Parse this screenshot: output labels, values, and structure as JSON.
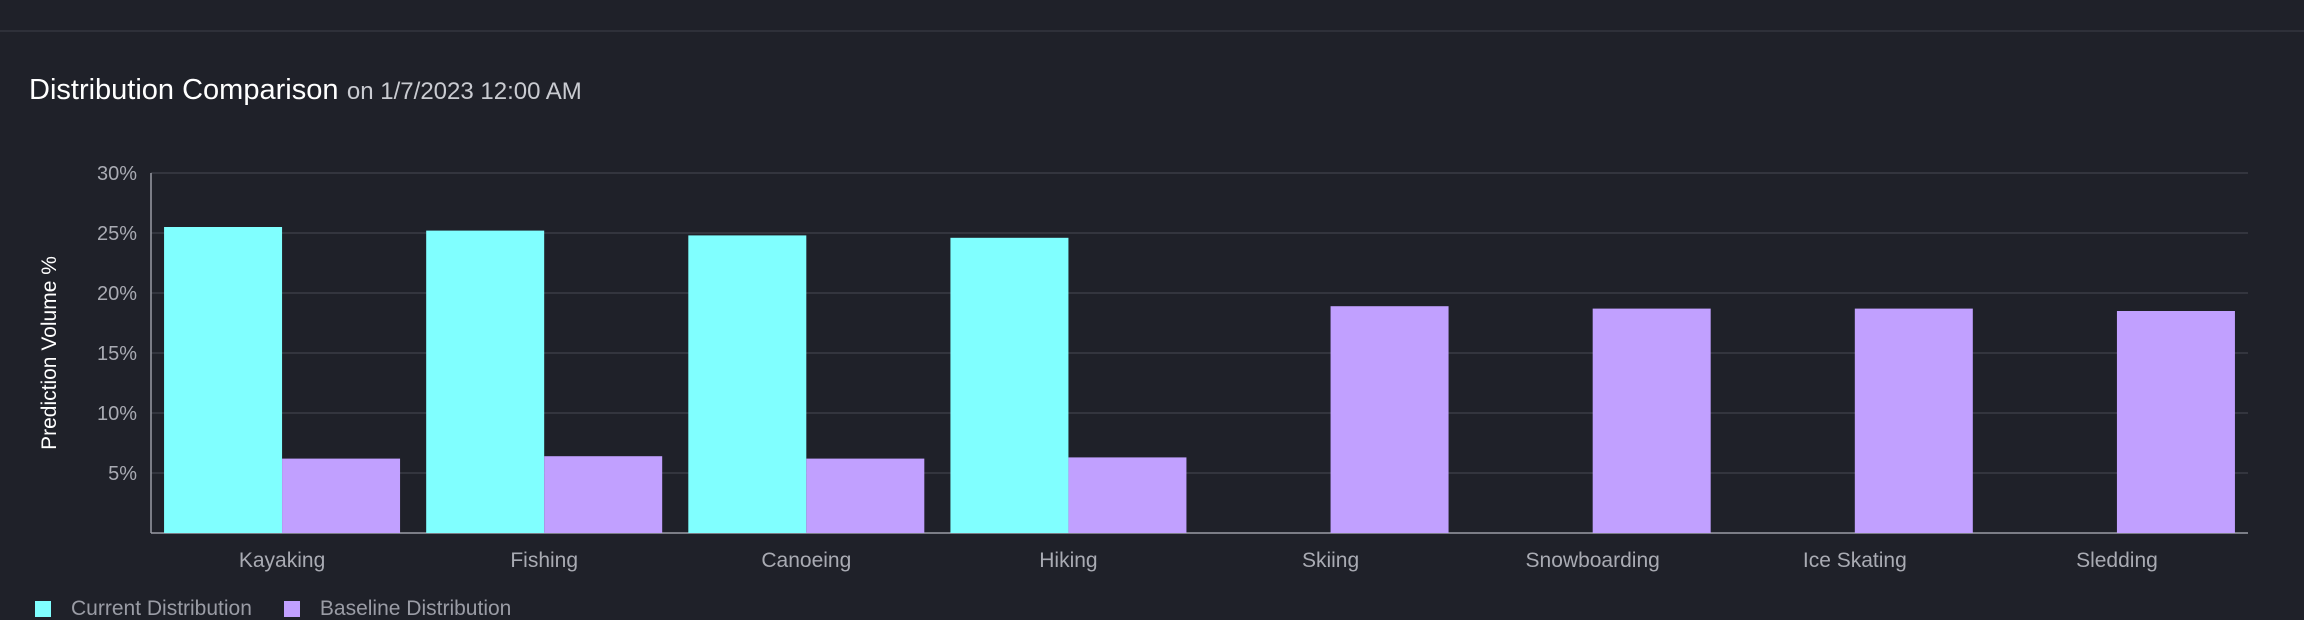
{
  "header": {
    "title": "Distribution Comparison",
    "subtitle": "on 1/7/2023 12:00 AM"
  },
  "colors": {
    "background": "#1f2129",
    "current": "#80ffff",
    "baseline": "#c1a0ff",
    "grid": "#3a3c45",
    "axis_text": "#a9abb3",
    "label_text": "#ffffff"
  },
  "chart_data": {
    "type": "bar",
    "title": "Distribution Comparison",
    "subtitle": "on 1/7/2023 12:00 AM",
    "xlabel": "",
    "ylabel": "Prediction Volume %",
    "categories": [
      "Kayaking",
      "Fishing",
      "Canoeing",
      "Hiking",
      "Skiing",
      "Snowboarding",
      "Ice Skating",
      "Sledding"
    ],
    "series": [
      {
        "name": "Current Distribution",
        "color": "#80ffff",
        "values": [
          25.5,
          25.2,
          24.8,
          24.6,
          0,
          0,
          0,
          0
        ]
      },
      {
        "name": "Baseline Distribution",
        "color": "#c1a0ff",
        "values": [
          6.2,
          6.4,
          6.2,
          6.3,
          18.9,
          18.7,
          18.7,
          18.5
        ]
      }
    ],
    "ylim": [
      0,
      30
    ],
    "yticks": [
      "5%",
      "10%",
      "15%",
      "20%",
      "25%",
      "30%"
    ],
    "ytick_values": [
      5,
      10,
      15,
      20,
      25,
      30
    ],
    "grid": true,
    "legend_position": "bottom-left"
  }
}
